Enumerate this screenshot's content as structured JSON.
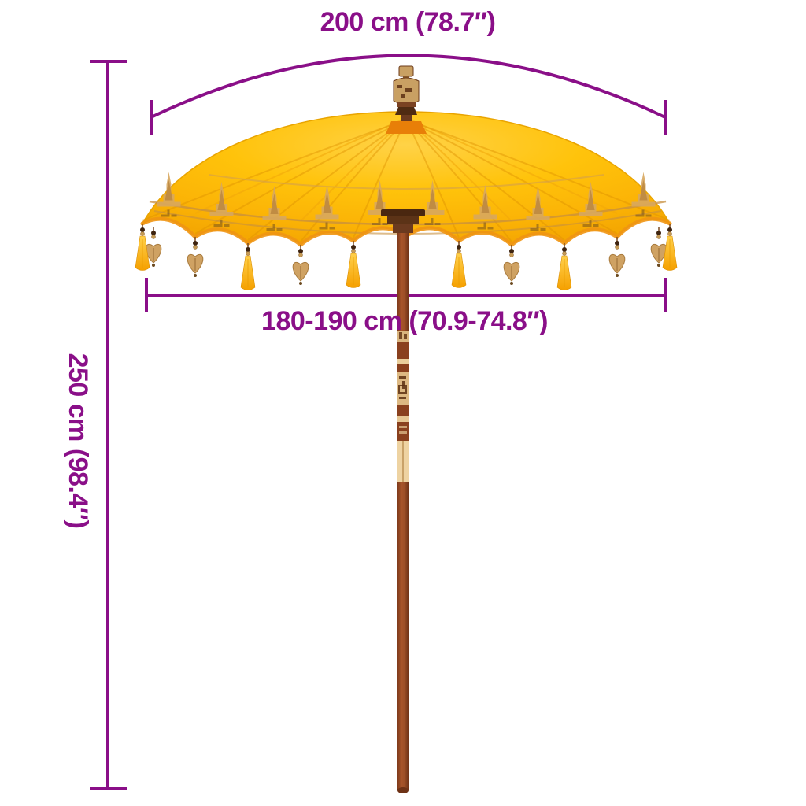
{
  "diagram": {
    "product": "balinese-parasol-yellow",
    "labels": {
      "top_width": "200 cm (78.7″)",
      "canopy_width": "180-190 cm (70.9-74.8″)",
      "height": "250 cm (98.4″)"
    },
    "colors": {
      "annotation_purple": "#8A0F88",
      "canopy_yellow": "#FFC30B",
      "canopy_trim_gold": "#D2A05F",
      "underside_orange": "#EF9512",
      "pole_brown": "#9C4E26",
      "carved_band_tan": "#E3C18D",
      "background": "#FFFFFF"
    }
  }
}
